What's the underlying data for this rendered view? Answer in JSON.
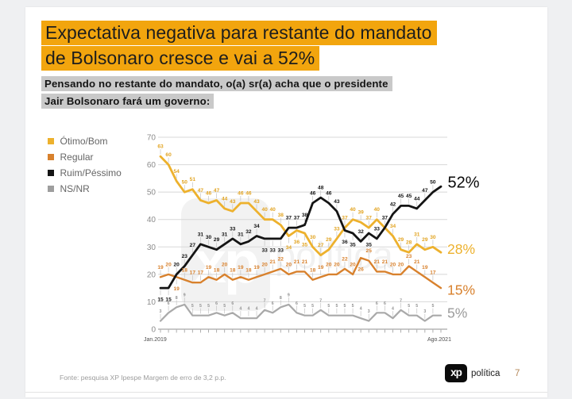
{
  "title": {
    "line1": "Expectativa negativa para restante do mandato",
    "line2": "de Bolsonaro cresce e vai a 52%",
    "highlight_color": "#f2a50e"
  },
  "subtitle": {
    "line1": "Pensando no restante do mandato, o(a) sr(a) acha que o presidente",
    "line2": "Jair Bolsonaro fará um governo:",
    "highlight_color": "#c9c9c9"
  },
  "legend": {
    "items": [
      {
        "label": "Ótimo/Bom",
        "color": "#edb12d"
      },
      {
        "label": "Regular",
        "color": "#d8812d"
      },
      {
        "label": "Ruim/Péssimo",
        "color": "#141414"
      },
      {
        "label": "NS/NR",
        "color": "#9e9e9e"
      }
    ]
  },
  "chart_data": {
    "type": "line",
    "title": "",
    "xlabel": "",
    "ylabel": "",
    "ylim": [
      0,
      70
    ],
    "y_ticks": [
      0,
      10,
      20,
      30,
      40,
      50,
      60,
      70
    ],
    "x_start_label": "Jan.2019",
    "x_end_label": "Ago.2021",
    "grid": true,
    "legend_position": "left",
    "series": [
      {
        "name": "Ótimo/Bom",
        "color": "#edb12d",
        "end_label": "28%",
        "values": [
          63,
          60,
          54,
          50,
          51,
          47,
          46,
          47,
          44,
          43,
          46,
          46,
          43,
          40,
          40,
          38,
          34,
          36,
          35,
          30,
          27,
          29,
          33,
          37,
          40,
          39,
          37,
          40,
          37,
          34,
          29,
          28,
          31,
          29,
          30,
          28
        ]
      },
      {
        "name": "Regular",
        "color": "#d8812d",
        "end_label": "15%",
        "values": [
          19,
          20,
          19,
          18,
          17,
          17,
          19,
          18,
          20,
          18,
          19,
          18,
          19,
          20,
          21,
          22,
          20,
          21,
          21,
          18,
          19,
          20,
          20,
          22,
          20,
          26,
          25,
          21,
          21,
          20,
          20,
          23,
          21,
          19,
          17,
          15
        ]
      },
      {
        "name": "Ruim/Péssimo",
        "color": "#141414",
        "end_label": "52%",
        "values": [
          15,
          15,
          20,
          23,
          27,
          31,
          30,
          29,
          31,
          33,
          31,
          32,
          34,
          33,
          33,
          33,
          37,
          37,
          38,
          46,
          48,
          46,
          43,
          36,
          35,
          32,
          35,
          33,
          37,
          42,
          45,
          45,
          44,
          47,
          50,
          52
        ]
      },
      {
        "name": "NS/NR",
        "color": "#a9a9a9",
        "end_label": "5%",
        "values": [
          3,
          6,
          8,
          9,
          5,
          5,
          5,
          6,
          5,
          6,
          4,
          4,
          4,
          7,
          6,
          8,
          9,
          6,
          5,
          5,
          7,
          5,
          5,
          5,
          5,
          4,
          3,
          6,
          6,
          4,
          7,
          5,
          5,
          3,
          5,
          5
        ]
      }
    ]
  },
  "watermark": {
    "logo_text": "xp",
    "brand_text": "política"
  },
  "footer": {
    "source_text": "Fonte: pesquisa XP Ipespe Margem de erro de 3,2 p.p.",
    "logo_text": "xp",
    "brand_text": "política",
    "page_number": "7"
  }
}
